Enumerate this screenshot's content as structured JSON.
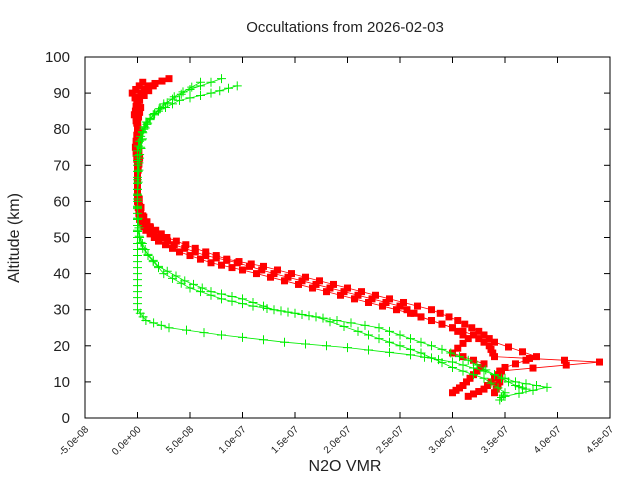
{
  "chart_data": {
    "type": "scatter",
    "title": "Occultations from 2026-02-03",
    "xlabel": "N2O VMR",
    "ylabel": "Altitude (km)",
    "xlim": [
      -5e-08,
      4.5e-07
    ],
    "ylim": [
      0,
      100
    ],
    "xticks": [
      -5e-08,
      0,
      5e-08,
      1e-07,
      1.5e-07,
      2e-07,
      2.5e-07,
      3e-07,
      3.5e-07,
      4e-07,
      4.5e-07
    ],
    "xtick_labels": [
      "-5.0e-08",
      "0.0e+00",
      "5.0e-08",
      "1.0e-07",
      "1.5e-07",
      "2.0e-07",
      "2.5e-07",
      "3.0e-07",
      "3.5e-07",
      "4.0e-07",
      "4.5e-07"
    ],
    "yticks": [
      0,
      10,
      20,
      30,
      40,
      50,
      60,
      70,
      80,
      90,
      100
    ],
    "ytick_labels": [
      "0",
      "10",
      "20",
      "30",
      "40",
      "50",
      "60",
      "70",
      "80",
      "90",
      "100"
    ],
    "grid": false,
    "legend": "none",
    "series": [
      {
        "name": "red-profiles",
        "color": "#ff0000",
        "marker": "square",
        "profiles": [
          [
            [
              3e-08,
              94
            ],
            [
              1e-08,
              92
            ],
            [
              0,
              89
            ],
            [
              -2e-09,
              85
            ],
            [
              0,
              80
            ],
            [
              -2e-09,
              75
            ],
            [
              0,
              70
            ],
            [
              0,
              65
            ],
            [
              0,
              60
            ],
            [
              2e-09,
              55
            ],
            [
              8e-09,
              52
            ],
            [
              2e-08,
              49
            ],
            [
              4e-08,
              46
            ],
            [
              7e-08,
              43
            ],
            [
              1e-07,
              41
            ],
            [
              1.4e-07,
              38
            ],
            [
              1.8e-07,
              35
            ],
            [
              2.2e-07,
              32
            ],
            [
              2.6e-07,
              29
            ],
            [
              2.9e-07,
              26
            ],
            [
              3.2e-07,
              23
            ],
            [
              3.35e-07,
              20
            ],
            [
              3.4e-07,
              17
            ],
            [
              4.4e-07,
              15.5
            ],
            [
              3.45e-07,
              13
            ],
            [
              3.45e-07,
              10
            ],
            [
              3.4e-07,
              7
            ]
          ],
          [
            [
              5e-09,
              93
            ],
            [
              -5e-09,
              90
            ],
            [
              3e-09,
              86
            ],
            [
              0,
              82
            ],
            [
              0,
              77
            ],
            [
              2e-09,
              72
            ],
            [
              0,
              67
            ],
            [
              0,
              62
            ],
            [
              3e-09,
              57
            ],
            [
              1.2e-08,
              53
            ],
            [
              2.8e-08,
              50
            ],
            [
              5.5e-08,
              47
            ],
            [
              8.5e-08,
              44
            ],
            [
              1.2e-07,
              42
            ],
            [
              1.6e-07,
              39
            ],
            [
              2e-07,
              36
            ],
            [
              2.4e-07,
              33
            ],
            [
              2.8e-07,
              30
            ],
            [
              3.05e-07,
              27
            ],
            [
              3.25e-07,
              24
            ],
            [
              3.4e-07,
              21
            ],
            [
              3.8e-07,
              17
            ],
            [
              3.5e-07,
              14
            ],
            [
              3.4e-07,
              11
            ],
            [
              3.3e-07,
              8
            ],
            [
              3.15e-07,
              6
            ]
          ],
          [
            [
              1.5e-08,
              92
            ],
            [
              2e-09,
              88
            ],
            [
              -3e-09,
              84
            ],
            [
              2e-09,
              79
            ],
            [
              0,
              74
            ],
            [
              0,
              69
            ],
            [
              0,
              63
            ],
            [
              5e-09,
              56
            ],
            [
              1.6e-08,
              51
            ],
            [
              3.5e-08,
              48
            ],
            [
              6.5e-08,
              45
            ],
            [
              9.5e-08,
              43
            ],
            [
              1.3e-07,
              40
            ],
            [
              1.7e-07,
              37
            ],
            [
              2.1e-07,
              34
            ],
            [
              2.5e-07,
              31
            ],
            [
              2.7e-07,
              28
            ],
            [
              3e-07,
              25
            ],
            [
              3.15e-07,
              22
            ],
            [
              3e-07,
              18
            ],
            [
              3.3e-07,
              15
            ],
            [
              3.2e-07,
              12
            ],
            [
              3.1e-07,
              9
            ],
            [
              3e-07,
              7
            ]
          ]
        ]
      },
      {
        "name": "green-profiles",
        "color": "#00ee00",
        "marker": "plus",
        "profiles": [
          [
            [
              9.5e-08,
              92
            ],
            [
              7e-08,
              90
            ],
            [
              4e-08,
              88
            ],
            [
              2e-08,
              85
            ],
            [
              8e-09,
              82
            ],
            [
              3e-09,
              78
            ],
            [
              0,
              74
            ],
            [
              0,
              70
            ],
            [
              0,
              65
            ],
            [
              0,
              60
            ],
            [
              0,
              55
            ],
            [
              0,
              50
            ],
            [
              0,
              45
            ],
            [
              0,
              40
            ],
            [
              0,
              35
            ],
            [
              0,
              30
            ],
            [
              8e-09,
              27
            ],
            [
              3e-08,
              25
            ],
            [
              8e-08,
              23
            ],
            [
              1.4e-07,
              21
            ],
            [
              2e-07,
              19.5
            ],
            [
              2.6e-07,
              17.5
            ],
            [
              3e-07,
              15.5
            ],
            [
              3.3e-07,
              13
            ],
            [
              3.6e-07,
              10
            ],
            [
              3.9e-07,
              8.5
            ],
            [
              3.5e-07,
              6
            ]
          ],
          [
            [
              8e-08,
              94
            ],
            [
              5e-08,
              91
            ],
            [
              2.5e-08,
              87
            ],
            [
              1.2e-08,
              83
            ],
            [
              5e-09,
              79
            ],
            [
              2e-09,
              73
            ],
            [
              0,
              66
            ],
            [
              0,
              58
            ],
            [
              2e-09,
              50
            ],
            [
              1e-08,
              45
            ],
            [
              2.5e-08,
              40
            ],
            [
              5e-08,
              36
            ],
            [
              8e-08,
              33
            ],
            [
              1.1e-07,
              31
            ],
            [
              1.5e-07,
              29
            ],
            [
              1.9e-07,
              27
            ],
            [
              2.3e-07,
              25
            ],
            [
              2.6e-07,
              22
            ],
            [
              2.9e-07,
              19
            ],
            [
              3.15e-07,
              16
            ],
            [
              3.4e-07,
              12
            ],
            [
              3.6e-07,
              9
            ],
            [
              3.7e-07,
              8
            ]
          ],
          [
            [
              6e-08,
              93
            ],
            [
              3.5e-08,
              89
            ],
            [
              1.5e-08,
              84
            ],
            [
              6e-09,
              80
            ],
            [
              2e-09,
              72
            ],
            [
              0,
              62
            ],
            [
              0,
              52
            ],
            [
              5e-09,
              47
            ],
            [
              2e-08,
              42
            ],
            [
              4.5e-08,
              38
            ],
            [
              7e-08,
              35
            ],
            [
              1e-07,
              33
            ],
            [
              1.3e-07,
              30
            ],
            [
              1.7e-07,
              28
            ],
            [
              2.1e-07,
              24
            ],
            [
              2.4e-07,
              21
            ],
            [
              2.7e-07,
              18
            ],
            [
              3e-07,
              14
            ],
            [
              3.3e-07,
              11
            ],
            [
              3.5e-07,
              7
            ],
            [
              3.45e-07,
              5
            ]
          ]
        ]
      }
    ]
  }
}
